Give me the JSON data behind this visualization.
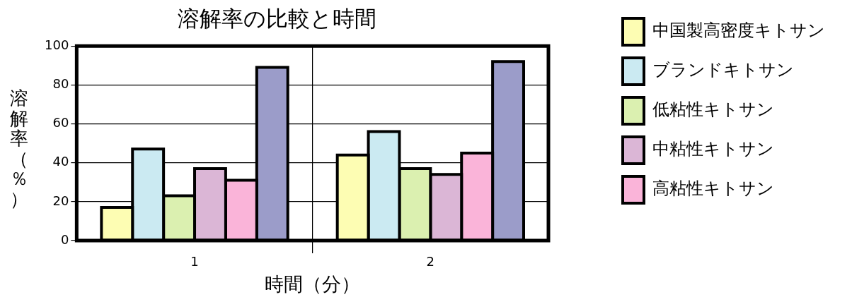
{
  "chart_data": {
    "type": "bar",
    "title": "溶解率の比較と時間",
    "xlabel": "時間（分）",
    "ylabel": "溶解率（％）",
    "categories": [
      "1",
      "2"
    ],
    "series": [
      {
        "name": "中国製高密度キトサン",
        "color": "#fdfdb3",
        "values": [
          17,
          44
        ]
      },
      {
        "name": "ブランドキトサン",
        "color": "#cbeaf2",
        "values": [
          47,
          56
        ]
      },
      {
        "name": "低粘性キトサン",
        "color": "#dbf0b0",
        "values": [
          23,
          37
        ]
      },
      {
        "name": "中粘性キトサン",
        "color": "#dbb6d6",
        "values": [
          37,
          34
        ]
      },
      {
        "name": "高粘性キトサン",
        "color": "#fab4d9",
        "values": [
          31,
          45
        ]
      },
      {
        "color": "#9b9cc9",
        "values": [
          89,
          92
        ]
      }
    ],
    "ylim": [
      0,
      100
    ],
    "yticks": [
      0,
      20,
      40,
      60,
      80,
      100
    ],
    "grid": true,
    "legend": "right"
  }
}
